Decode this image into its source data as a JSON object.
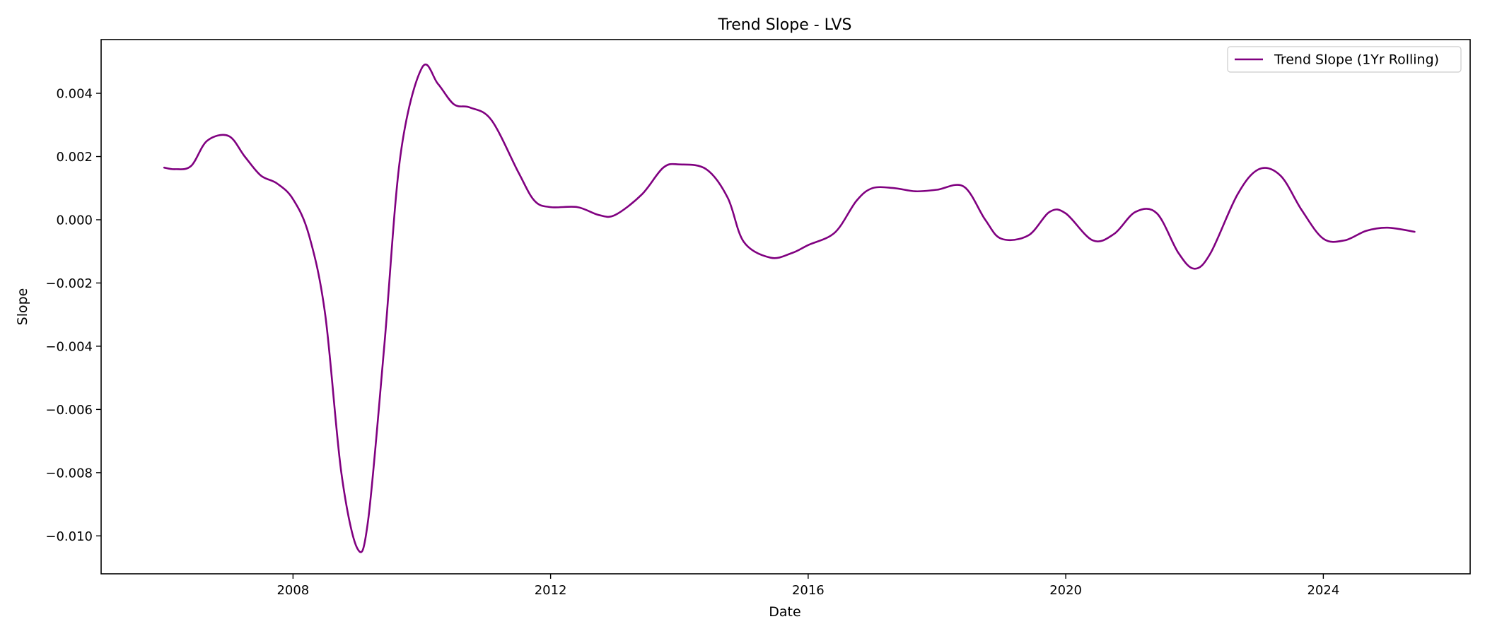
{
  "chart_data": {
    "type": "line",
    "title": "Trend Slope - LVS",
    "xlabel": "Date",
    "ylabel": "Slope",
    "x_range": [
      2005.02,
      2026.28
    ],
    "ylim": [
      -0.0112,
      0.0057
    ],
    "x_ticks": [
      2008,
      2012,
      2016,
      2020,
      2024
    ],
    "x_tick_labels": [
      "2008",
      "2012",
      "2016",
      "2020",
      "2024"
    ],
    "y_ticks": [
      0.004,
      0.002,
      0.0,
      -0.002,
      -0.004,
      -0.006,
      -0.008,
      -0.01
    ],
    "y_tick_labels": [
      "0.004",
      "0.002",
      "0.000",
      "−0.002",
      "−0.004",
      "−0.006",
      "−0.008",
      "−0.010"
    ],
    "grid": false,
    "legend_position": "top-right",
    "colors": {
      "line": "#800080",
      "axes": "#000000",
      "background": "#ffffff"
    },
    "series": [
      {
        "name": "Trend Slope (1Yr Rolling)",
        "x": [
          "2006-01",
          "2006-03",
          "2006-06",
          "2006-09",
          "2007-01",
          "2007-04",
          "2007-07",
          "2007-10",
          "2008-01",
          "2008-04",
          "2008-07",
          "2008-10",
          "2009-01",
          "2009-03",
          "2009-06",
          "2009-09",
          "2010-01",
          "2010-04",
          "2010-07",
          "2010-10",
          "2011-02",
          "2011-07",
          "2011-10",
          "2012-01",
          "2012-06",
          "2012-10",
          "2013-01",
          "2013-06",
          "2013-10",
          "2014-01",
          "2014-06",
          "2014-10",
          "2015-01",
          "2015-06",
          "2015-10",
          "2016-01",
          "2016-06",
          "2016-10",
          "2017-01",
          "2017-05",
          "2017-09",
          "2018-01",
          "2018-06",
          "2018-10",
          "2019-01",
          "2019-06",
          "2019-10",
          "2020-01",
          "2020-06",
          "2020-10",
          "2021-02",
          "2021-06",
          "2021-10",
          "2022-01",
          "2022-04",
          "2022-09",
          "2023-01",
          "2023-05",
          "2023-09",
          "2024-01",
          "2024-05",
          "2024-09",
          "2025-01",
          "2025-06"
        ],
        "y": [
          0.00165,
          0.0016,
          0.0017,
          0.0025,
          0.00265,
          0.002,
          0.0014,
          0.00115,
          0.00065,
          -0.0005,
          -0.003,
          -0.008,
          -0.0104,
          -0.0095,
          -0.004,
          0.002,
          0.0048,
          0.0043,
          0.00365,
          0.00355,
          0.00315,
          0.0015,
          0.0006,
          0.0004,
          0.0004,
          0.00015,
          0.00015,
          0.0008,
          0.00165,
          0.00175,
          0.0016,
          0.0007,
          -0.0007,
          -0.0012,
          -0.00105,
          -0.0008,
          -0.0004,
          0.0006,
          0.001,
          0.001,
          0.0009,
          0.00095,
          0.00105,
          0.0,
          -0.0006,
          -0.0005,
          0.00025,
          0.0002,
          -0.00065,
          -0.00045,
          0.00025,
          0.0002,
          -0.00105,
          -0.00155,
          -0.00105,
          0.0008,
          0.0016,
          0.0014,
          0.0003,
          -0.0006,
          -0.00065,
          -0.00035,
          -0.00025,
          -0.00038
        ]
      }
    ]
  }
}
